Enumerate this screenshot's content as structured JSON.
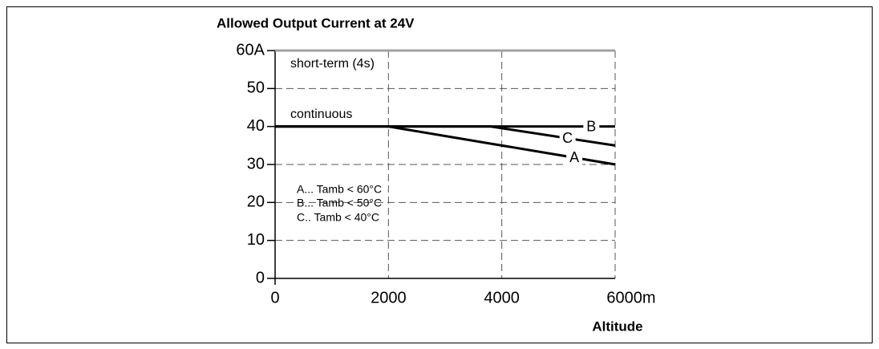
{
  "chart_data": {
    "type": "line",
    "title": "Allowed Output Current at 24V",
    "x_label": "Altitude",
    "x": [
      0,
      2000,
      3800,
      6000
    ],
    "series": [
      {
        "name": "short-term (4s)",
        "color": "#a0a0a0",
        "values": [
          60,
          60,
          60,
          60
        ]
      },
      {
        "name": "A",
        "color": "#000000",
        "values": [
          40,
          40,
          35.5,
          30
        ]
      },
      {
        "name": "B",
        "color": "#000000",
        "values": [
          40,
          40,
          40,
          40
        ]
      },
      {
        "name": "C",
        "color": "#000000",
        "values": [
          40,
          40,
          40,
          35
        ]
      }
    ],
    "annotations": [
      "continuous",
      "A... Tamb < 60°C",
      "B... Tamb < 50°C",
      "C.. Tamb < 40°C"
    ],
    "xlim": [
      0,
      6000
    ],
    "xticks": [
      0,
      2000,
      4000,
      {
        "value": 6000,
        "label": "6000m"
      }
    ],
    "ylim": [
      0,
      60
    ],
    "yticks": [
      0,
      10,
      20,
      30,
      40,
      50,
      {
        "value": 60,
        "label": "60A"
      }
    ],
    "grid": true
  }
}
